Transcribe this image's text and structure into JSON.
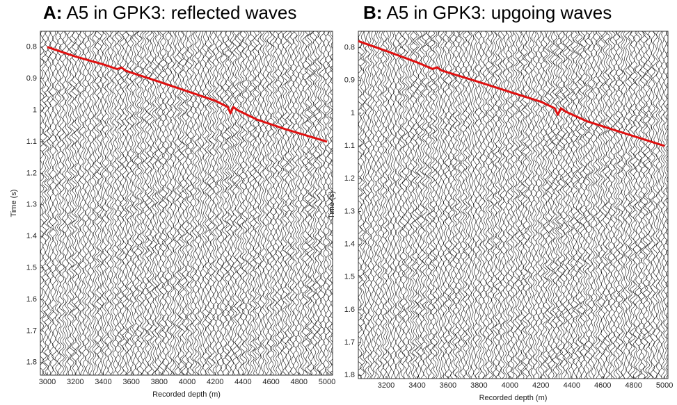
{
  "chart_data": [
    {
      "type": "line",
      "panel": "A:",
      "title": "A5 in GPK3: reflected waves",
      "xlabel": "Recorded depth (m)",
      "ylabel": "Time (s)",
      "xlim": [
        2950,
        5040
      ],
      "xticks": [
        3000,
        3200,
        3400,
        3600,
        3800,
        4000,
        4200,
        4400,
        4600,
        4800,
        5000
      ],
      "ylim": [
        0.75,
        1.84
      ],
      "yticks": [
        0.8,
        0.9,
        1,
        1.1,
        1.2,
        1.3,
        1.4,
        1.5,
        1.6,
        1.7,
        1.8
      ],
      "y_inverted": true,
      "x": [
        3000,
        3200,
        3400,
        3500,
        3530,
        3560,
        3800,
        4000,
        4200,
        4290,
        4310,
        4330,
        4360,
        4500,
        4700,
        5000
      ],
      "values": [
        0.8,
        0.83,
        0.855,
        0.87,
        0.865,
        0.875,
        0.91,
        0.94,
        0.97,
        0.99,
        1.01,
        0.99,
        1.0,
        1.03,
        1.06,
        1.1
      ],
      "color": "#e01010"
    },
    {
      "type": "line",
      "panel": "B:",
      "title": "A5 in GPK3: upgoing waves",
      "xlabel": "Recorded depth (m)",
      "ylabel": "Time (s)",
      "xlim": [
        3020,
        5022
      ],
      "xticks": [
        3200,
        3400,
        3600,
        3800,
        4000,
        4200,
        4400,
        4600,
        4800,
        5000
      ],
      "ylim": [
        0.75,
        1.81
      ],
      "yticks": [
        0.8,
        0.9,
        1,
        1.1,
        1.2,
        1.3,
        1.4,
        1.5,
        1.6,
        1.7,
        1.8
      ],
      "y_inverted": true,
      "x": [
        3020,
        3200,
        3400,
        3500,
        3530,
        3560,
        3800,
        4000,
        4200,
        4290,
        4310,
        4330,
        4360,
        4500,
        4700,
        5000
      ],
      "values": [
        0.78,
        0.81,
        0.845,
        0.865,
        0.86,
        0.87,
        0.905,
        0.935,
        0.965,
        0.985,
        1.005,
        0.985,
        0.995,
        1.025,
        1.055,
        1.1
      ],
      "color": "#e01010"
    }
  ]
}
